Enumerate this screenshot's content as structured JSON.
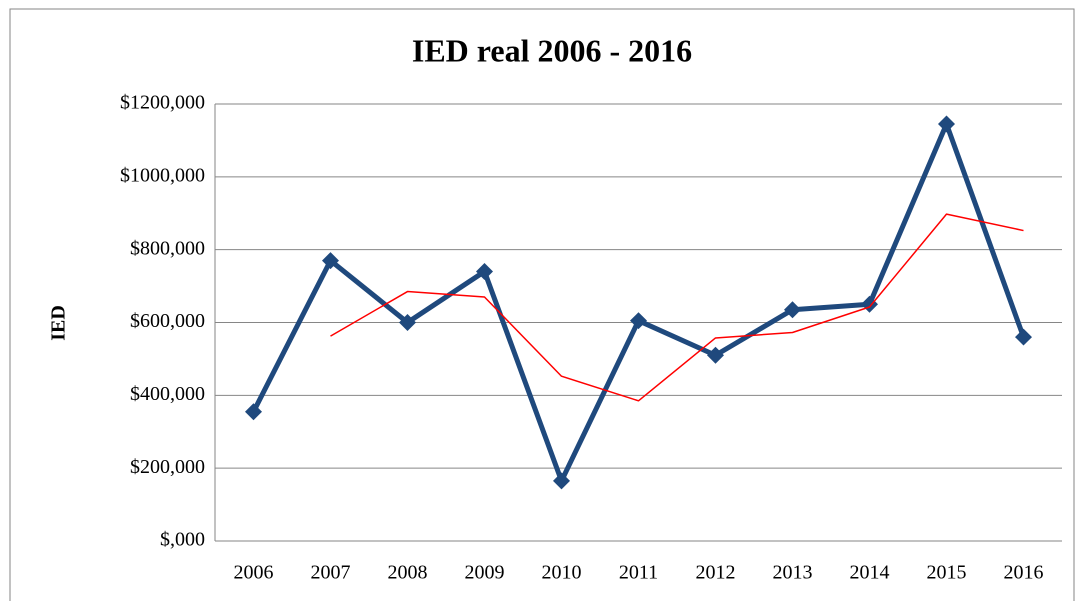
{
  "chart_data": {
    "type": "line",
    "title": "IED real 2006 - 2016",
    "y_label": "IED",
    "categories": [
      "2006",
      "2007",
      "2008",
      "2009",
      "2010",
      "2011",
      "2012",
      "2013",
      "2014",
      "2015",
      "2016"
    ],
    "series": [
      {
        "color": "#1f497d",
        "values": [
          355000,
          770000,
          600000,
          740000,
          165000,
          605000,
          510000,
          635000,
          650000,
          1145000,
          560000
        ]
      },
      {
        "color": "#ff0000",
        "values": [
          null,
          562500,
          685000,
          670000,
          452500,
          385000,
          557500,
          572500,
          642500,
          897500,
          852500
        ]
      }
    ],
    "ylim": [
      0,
      1200000
    ],
    "yticks": [
      {
        "value": 0,
        "label": "$,000"
      },
      {
        "value": 200000,
        "label": "$200,000"
      },
      {
        "value": 400000,
        "label": "$400,000"
      },
      {
        "value": 600000,
        "label": "$600,000"
      },
      {
        "value": 800000,
        "label": "$800,000"
      },
      {
        "value": 1000000,
        "label": "$1000,000"
      },
      {
        "value": 1200000,
        "label": "$1200,000"
      }
    ],
    "grid": true
  }
}
